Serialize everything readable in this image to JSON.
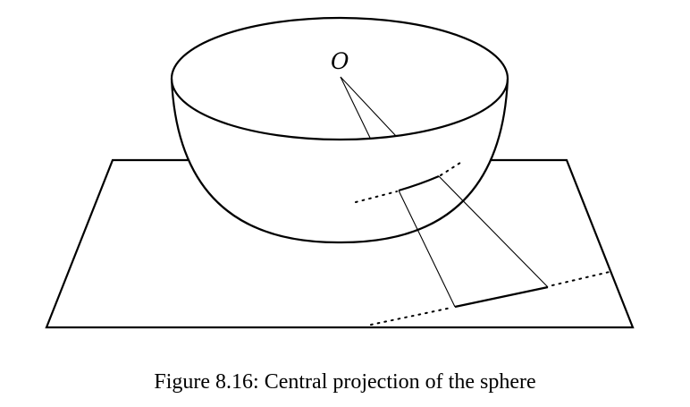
{
  "figure": {
    "center_label": "O",
    "caption": "Figure 8.16: Central projection of the sphere"
  },
  "colors": {
    "stroke": "#000000",
    "background": "#ffffff"
  }
}
